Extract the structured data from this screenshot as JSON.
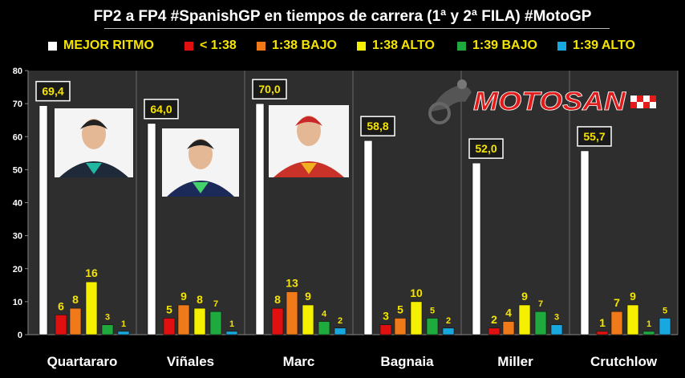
{
  "title": "FP2 a FP4 #SpanishGP en tiempos de carrera (1ª y 2ª FILA) #MotoGP",
  "logo_text": "MOTOSAN",
  "chart_data": {
    "type": "bar",
    "categories": [
      "Quartararo",
      "Viñales",
      "Marc",
      "Bagnaia",
      "Miller",
      "Crutchlow"
    ],
    "series": [
      {
        "name": "MEJOR RITMO",
        "color": "#ffffff",
        "values": [
          69.4,
          64.0,
          70.0,
          58.8,
          52.0,
          55.7
        ],
        "labels": [
          "69,4",
          "64,0",
          "70,0",
          "58,8",
          "52,0",
          "55,7"
        ]
      },
      {
        "name": "< 1:38",
        "color": "#e01010",
        "values": [
          6,
          5,
          8,
          3,
          2,
          1
        ]
      },
      {
        "name": "1:38 BAJO",
        "color": "#f07a1a",
        "values": [
          8,
          9,
          13,
          5,
          4,
          7
        ]
      },
      {
        "name": "1:38 ALTO",
        "color": "#f5f000",
        "values": [
          16,
          8,
          9,
          10,
          9,
          9
        ]
      },
      {
        "name": "1:39 BAJO",
        "color": "#1eaa3c",
        "values": [
          3,
          7,
          4,
          5,
          7,
          1
        ]
      },
      {
        "name": "1:39 ALTO",
        "color": "#18a8e0",
        "values": [
          1,
          1,
          2,
          2,
          3,
          5
        ]
      }
    ],
    "ylim": [
      0,
      80
    ],
    "yticks": [
      0,
      10,
      20,
      30,
      40,
      50,
      60,
      70,
      80
    ],
    "legend": "top",
    "grid": false
  }
}
